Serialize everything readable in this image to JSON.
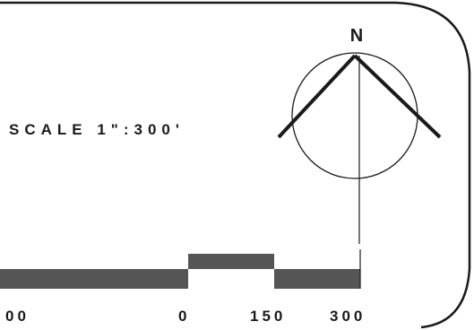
{
  "north_label": "N",
  "scale_label": "SCALE 1\":300'",
  "scale_bar": {
    "ticks": [
      "00",
      "0",
      "150",
      "300"
    ]
  },
  "colors": {
    "ink": "#1a1a1a",
    "bar_fill": "#555555",
    "paper": "#ffffff"
  }
}
